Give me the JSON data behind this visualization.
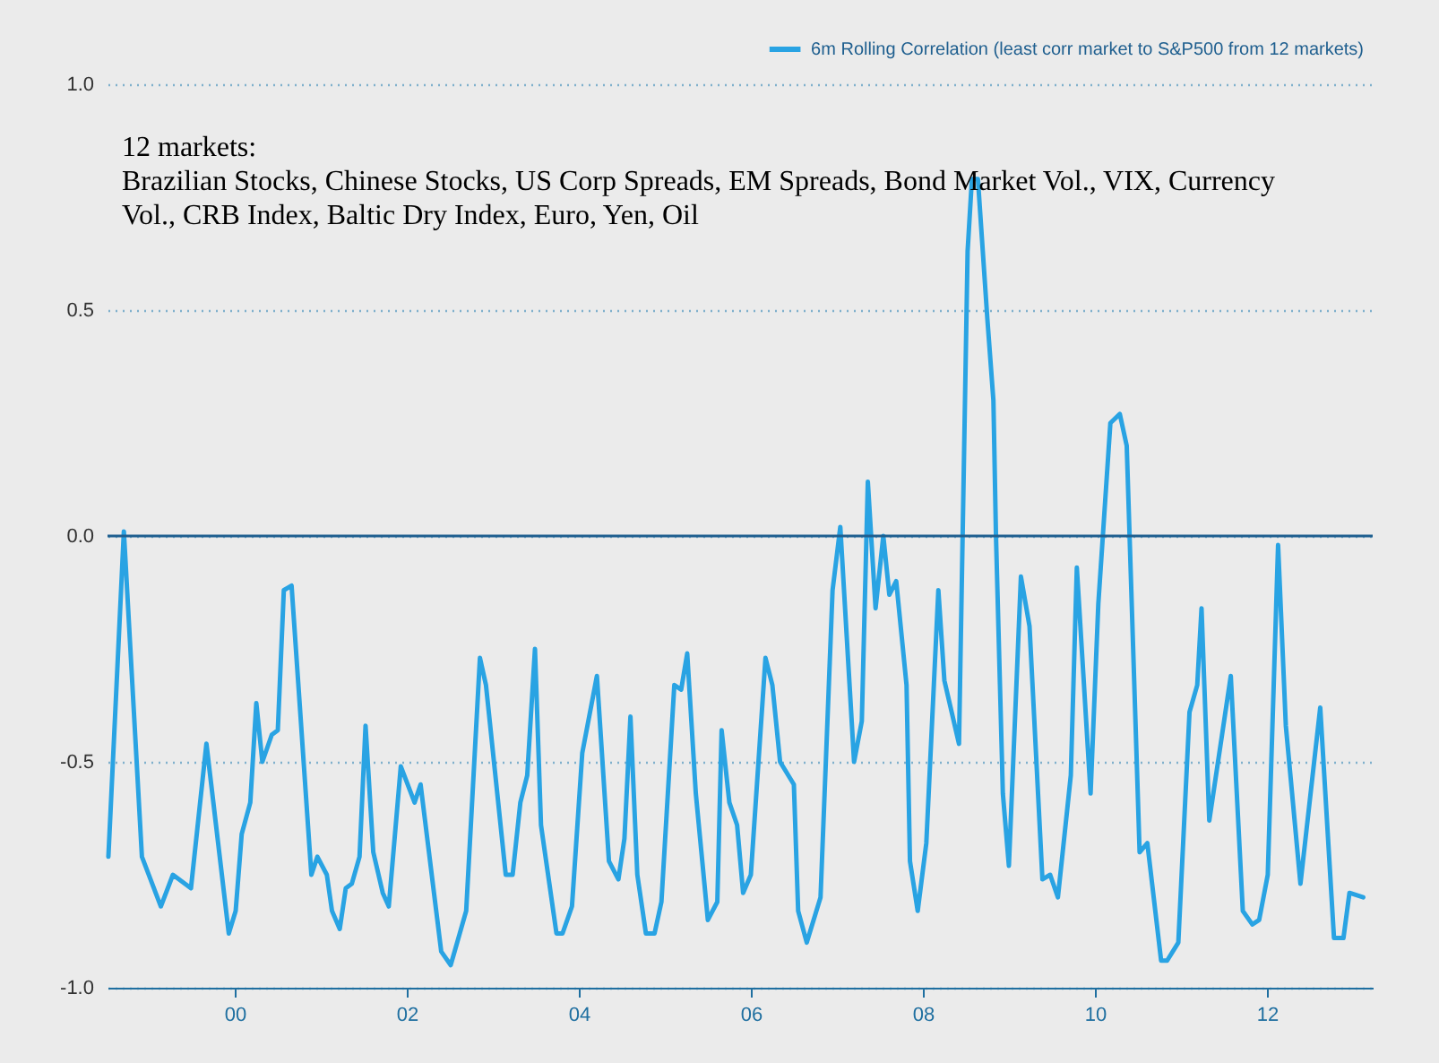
{
  "chart_data": {
    "type": "line",
    "annotations": [
      "12 markets:",
      "Brazilian Stocks, Chinese Stocks, US Corp Spreads, EM Spreads, Bond Market Vol., VIX, Currency Vol., CRB Index, Baltic Dry Index, Euro, Yen, Oil"
    ],
    "xlim": [
      1998.52,
      2013.23
    ],
    "xticks": [
      {
        "value": 2000,
        "label": "00"
      },
      {
        "value": 2002,
        "label": "02"
      },
      {
        "value": 2004,
        "label": "04"
      },
      {
        "value": 2006,
        "label": "06"
      },
      {
        "value": 2008,
        "label": "08"
      },
      {
        "value": 2010,
        "label": "10"
      },
      {
        "value": 2012,
        "label": "12"
      }
    ],
    "ylim": [
      -1,
      1
    ],
    "yticks": [
      {
        "value": -1,
        "label": "-1.0"
      },
      {
        "value": -0.5,
        "label": "-0.5"
      },
      {
        "value": 0,
        "label": "0.0"
      },
      {
        "value": 0.5,
        "label": "0.5"
      },
      {
        "value": 1,
        "label": "1.0"
      }
    ],
    "grid": "y",
    "legend": "top right",
    "ref_lines": [
      {
        "axis": "y",
        "value": 0,
        "color": "#1f5f8f"
      }
    ],
    "series": [
      {
        "name": "6m Rolling Correlation (least corr market to S&P500 from 12 markets)",
        "color": "#29a3e3",
        "x": [
          1998.53,
          1998.71,
          1998.92,
          1999.14,
          1999.28,
          1999.49,
          1999.67,
          1999.93,
          2000.01,
          2000.08,
          2000.18,
          2000.25,
          2000.32,
          2000.43,
          2000.5,
          2000.57,
          2000.66,
          2000.89,
          2000.96,
          2001.07,
          2001.13,
          2001.22,
          2001.29,
          2001.36,
          2001.45,
          2001.52,
          2001.61,
          2001.72,
          2001.79,
          2001.93,
          2002.09,
          2002.16,
          2002.4,
          2002.51,
          2002.69,
          2002.85,
          2002.92,
          2003.15,
          2003.23,
          2003.32,
          2003.4,
          2003.49,
          2003.56,
          2003.74,
          2003.81,
          2003.92,
          2004.04,
          2004.21,
          2004.35,
          2004.46,
          2004.53,
          2004.6,
          2004.68,
          2004.78,
          2004.88,
          2004.96,
          2005.11,
          2005.19,
          2005.26,
          2005.36,
          2005.5,
          2005.61,
          2005.66,
          2005.75,
          2005.84,
          2005.91,
          2006.0,
          2006.17,
          2006.25,
          2006.34,
          2006.5,
          2006.55,
          2006.65,
          2006.81,
          2006.95,
          2007.04,
          2007.2,
          2007.29,
          2007.36,
          2007.45,
          2007.54,
          2007.61,
          2007.69,
          2007.81,
          2007.85,
          2007.94,
          2008.04,
          2008.18,
          2008.25,
          2008.42,
          2008.52,
          2008.57,
          2008.64,
          2008.75,
          2008.82,
          2008.85,
          2008.93,
          2009.0,
          2009.14,
          2009.24,
          2009.39,
          2009.48,
          2009.57,
          2009.72,
          2009.79,
          2009.95,
          2010.04,
          2010.18,
          2010.29,
          2010.37,
          2010.52,
          2010.61,
          2010.77,
          2010.84,
          2010.97,
          2011.1,
          2011.19,
          2011.24,
          2011.33,
          2011.58,
          2011.72,
          2011.83,
          2011.91,
          2012.01,
          2012.13,
          2012.22,
          2012.39,
          2012.62,
          2012.78,
          2012.89,
          2012.96,
          2013.12
        ],
        "values": [
          -0.71,
          0.01,
          -0.71,
          -0.82,
          -0.75,
          -0.78,
          -0.46,
          -0.88,
          -0.83,
          -0.66,
          -0.59,
          -0.37,
          -0.5,
          -0.44,
          -0.43,
          -0.12,
          -0.11,
          -0.75,
          -0.71,
          -0.75,
          -0.83,
          -0.87,
          -0.78,
          -0.77,
          -0.71,
          -0.42,
          -0.7,
          -0.79,
          -0.82,
          -0.51,
          -0.59,
          -0.55,
          -0.92,
          -0.95,
          -0.83,
          -0.27,
          -0.33,
          -0.75,
          -0.75,
          -0.59,
          -0.53,
          -0.25,
          -0.64,
          -0.88,
          -0.88,
          -0.82,
          -0.48,
          -0.31,
          -0.72,
          -0.76,
          -0.67,
          -0.4,
          -0.75,
          -0.88,
          -0.88,
          -0.81,
          -0.33,
          -0.34,
          -0.26,
          -0.57,
          -0.85,
          -0.81,
          -0.43,
          -0.59,
          -0.64,
          -0.79,
          -0.75,
          -0.27,
          -0.33,
          -0.5,
          -0.55,
          -0.83,
          -0.9,
          -0.8,
          -0.12,
          0.02,
          -0.5,
          -0.41,
          0.12,
          -0.16,
          0,
          -0.13,
          -0.1,
          -0.33,
          -0.72,
          -0.83,
          -0.68,
          -0.12,
          -0.32,
          -0.46,
          0.63,
          0.79,
          0.79,
          0.48,
          0.3,
          0,
          -0.57,
          -0.73,
          -0.09,
          -0.2,
          -0.76,
          -0.75,
          -0.8,
          -0.53,
          -0.07,
          -0.57,
          -0.15,
          0.25,
          0.27,
          0.2,
          -0.7,
          -0.68,
          -0.94,
          -0.94,
          -0.9,
          -0.39,
          -0.33,
          -0.16,
          -0.63,
          -0.31,
          -0.83,
          -0.86,
          -0.85,
          -0.75,
          -0.02,
          -0.42,
          -0.77,
          -0.38,
          -0.89,
          -0.89,
          -0.79,
          -0.8
        ]
      }
    ]
  }
}
